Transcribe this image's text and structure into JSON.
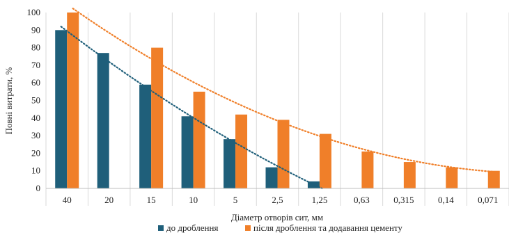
{
  "chart_data": {
    "type": "bar",
    "xlabel": "Діаметр отворів сит, мм",
    "ylabel": "Повні витрати, %",
    "ylim": [
      0,
      100
    ],
    "yticks": [
      0,
      10,
      20,
      30,
      40,
      50,
      60,
      70,
      80,
      90,
      100
    ],
    "categories": [
      "40",
      "20",
      "15",
      "10",
      "5",
      "2,5",
      "1,25",
      "0,63",
      "0,315",
      "0,14",
      "0,071"
    ],
    "series": [
      {
        "name": "до дроблення",
        "color": "#1f5f7a",
        "values": [
          90,
          77,
          59,
          41,
          28,
          12,
          4,
          null,
          null,
          null,
          null
        ]
      },
      {
        "name": "після дроблення та додавання цементу",
        "color": "#f07f29",
        "values": [
          100,
          null,
          80,
          55,
          42,
          39,
          31,
          21,
          15,
          12,
          10
        ]
      }
    ],
    "trendlines": [
      {
        "series": "до дроблення",
        "style": "dotted",
        "color": "#1f5f7a"
      },
      {
        "series": "після дроблення та додавання цементу",
        "style": "dotted",
        "color": "#f07f29"
      }
    ],
    "grid": "vertical-category-separators",
    "legend": "bottom"
  }
}
